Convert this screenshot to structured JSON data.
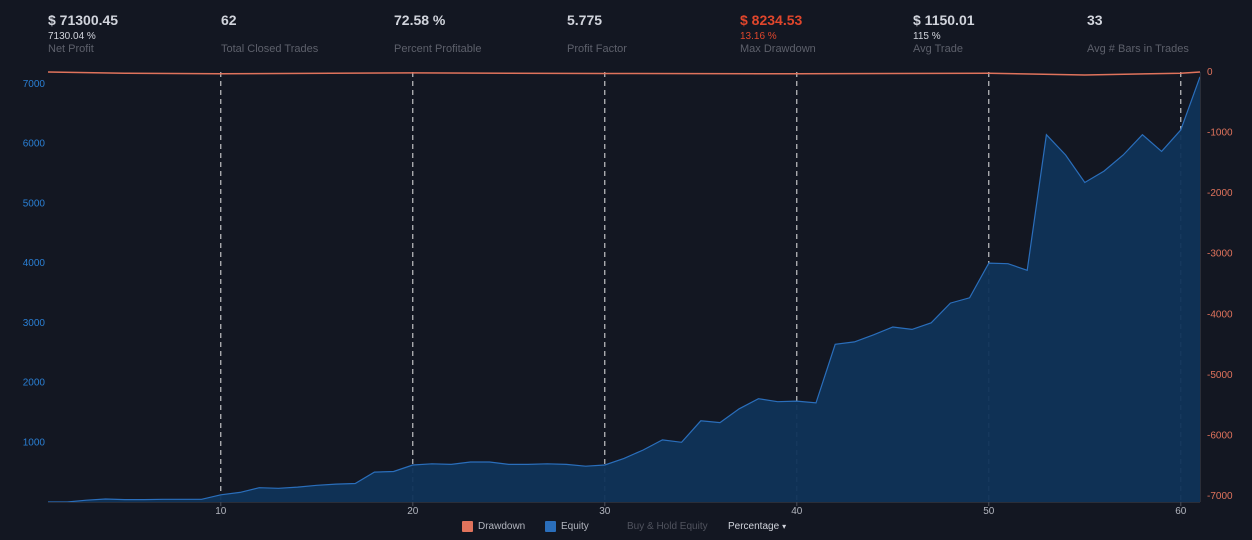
{
  "stats": [
    {
      "value": "$ 71300.45",
      "sub": "7130.04 %",
      "label": "Net Profit"
    },
    {
      "value": "62",
      "sub": "",
      "label": "Total Closed Trades"
    },
    {
      "value": "72.58 %",
      "sub": "",
      "label": "Percent Profitable"
    },
    {
      "value": "5.775",
      "sub": "",
      "label": "Profit Factor"
    },
    {
      "value": "$ 8234.53",
      "sub": "13.16 %",
      "label": "Max Drawdown"
    },
    {
      "value": "$ 1150.01",
      "sub": "115 %",
      "label": "Avg Trade"
    },
    {
      "value": "33",
      "sub": "",
      "label": "Avg # Bars in Trades"
    }
  ],
  "legend": {
    "drawdown": "Drawdown",
    "equity": "Equity",
    "buy_hold": "Buy & Hold Equity",
    "percentage": "Percentage",
    "caret": "▾"
  },
  "colors": {
    "equity_line": "#2a6ebb",
    "equity_fill": "#0f3358",
    "drawdown": "#e0735c",
    "left_axis_text": "#2a7fd4",
    "right_axis_text": "#e0735c",
    "grid_dash": "#e6e6e6",
    "background": "#131722"
  },
  "chart_data": {
    "type": "area",
    "x_ticks": [
      10,
      20,
      30,
      40,
      50,
      60
    ],
    "x_range": [
      1,
      61
    ],
    "left_axis": {
      "ticks": [
        1000,
        2000,
        3000,
        4000,
        5000,
        6000,
        7000
      ],
      "range": [
        0,
        7200
      ]
    },
    "right_axis": {
      "ticks": [
        0,
        -1000,
        -2000,
        -3000,
        -4000,
        -5000,
        -6000,
        -7000
      ],
      "range": [
        -7000,
        0
      ]
    },
    "series": [
      {
        "name": "Equity",
        "x": [
          1,
          2,
          3,
          4,
          5,
          6,
          7,
          8,
          9,
          10,
          11,
          12,
          13,
          14,
          15,
          16,
          17,
          18,
          19,
          20,
          21,
          22,
          23,
          24,
          25,
          26,
          27,
          28,
          29,
          30,
          31,
          32,
          33,
          34,
          35,
          36,
          37,
          38,
          39,
          40,
          41,
          42,
          43,
          44,
          45,
          46,
          47,
          48,
          49,
          50,
          51,
          52,
          53,
          54,
          55,
          56,
          57,
          58,
          59,
          60,
          61
        ],
        "y": [
          0,
          0,
          30,
          50,
          40,
          40,
          45,
          45,
          45,
          120,
          160,
          240,
          230,
          250,
          280,
          300,
          310,
          500,
          510,
          620,
          640,
          630,
          670,
          670,
          630,
          630,
          640,
          630,
          600,
          620,
          730,
          870,
          1040,
          1000,
          1360,
          1330,
          1560,
          1730,
          1680,
          1690,
          1660,
          2640,
          2680,
          2800,
          2930,
          2890,
          3000,
          3330,
          3420,
          4000,
          3990,
          3880,
          6150,
          5810,
          5350,
          5540,
          5810,
          6150,
          5870,
          6230,
          7120
        ]
      },
      {
        "name": "Drawdown",
        "x": [
          1,
          5,
          10,
          20,
          30,
          40,
          50,
          55,
          60,
          61
        ],
        "y": [
          0,
          -20,
          -30,
          -15,
          -25,
          -30,
          -20,
          -50,
          -20,
          0
        ]
      }
    ]
  }
}
